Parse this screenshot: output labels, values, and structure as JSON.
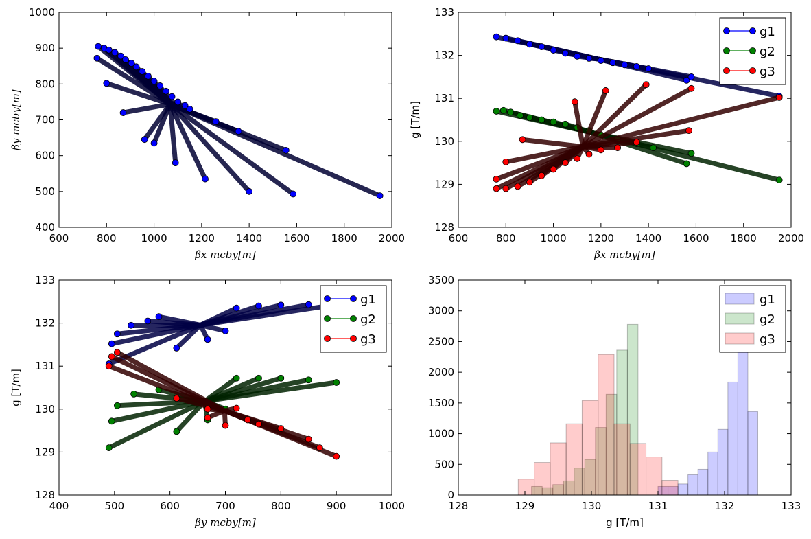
{
  "figure": {
    "panels": 4
  },
  "chart_data": [
    {
      "id": "top-left",
      "type": "scatter",
      "xlabel": "βx mcby[m]",
      "ylabel": "βy mcby[m]",
      "xlim": [
        600,
        2000
      ],
      "ylim": [
        400,
        1000
      ],
      "xticks": [
        "600",
        "800",
        "1000",
        "1200",
        "1400",
        "1600",
        "1800",
        "2000"
      ],
      "yticks": [
        "400",
        "500",
        "600",
        "700",
        "800",
        "900",
        "1000"
      ],
      "grid": false,
      "legend": null,
      "series": [
        {
          "color": "#0000ff",
          "points": [
            [
              765,
              905
            ],
            [
              790,
              900
            ],
            [
              810,
              895
            ],
            [
              835,
              888
            ],
            [
              860,
              878
            ],
            [
              880,
              868
            ],
            [
              905,
              858
            ],
            [
              925,
              848
            ],
            [
              950,
              835
            ],
            [
              975,
              822
            ],
            [
              1000,
              808
            ],
            [
              1025,
              795
            ],
            [
              1050,
              780
            ],
            [
              1075,
              765
            ],
            [
              1100,
              750
            ],
            [
              1130,
              740
            ],
            [
              1150,
              730
            ],
            [
              1260,
              695
            ],
            [
              1355,
              668
            ],
            [
              1555,
              615
            ],
            [
              1585,
              493
            ],
            [
              1400,
              500
            ],
            [
              1215,
              535
            ],
            [
              1090,
              580
            ],
            [
              1950,
              488
            ],
            [
              760,
              872
            ],
            [
              800,
              802
            ],
            [
              870,
              720
            ],
            [
              960,
              645
            ],
            [
              1000,
              635
            ]
          ]
        }
      ]
    },
    {
      "id": "top-right",
      "type": "line",
      "xlabel": "βx mcby[m]",
      "ylabel": "g [T/m]",
      "xlim": [
        600,
        2000
      ],
      "ylim": [
        128,
        133
      ],
      "xticks": [
        "600",
        "800",
        "1000",
        "1200",
        "1400",
        "1600",
        "1800",
        "2000"
      ],
      "yticks": [
        "128",
        "129",
        "130",
        "131",
        "132",
        "133"
      ],
      "grid": false,
      "legend": "top-right",
      "series": [
        {
          "name": "g1",
          "color": "#0000ff",
          "points": [
            [
              760,
              132.43
            ],
            [
              800,
              132.4
            ],
            [
              850,
              132.34
            ],
            [
              900,
              132.26
            ],
            [
              950,
              132.2
            ],
            [
              1000,
              132.12
            ],
            [
              1050,
              132.05
            ],
            [
              1100,
              131.98
            ],
            [
              1150,
              131.93
            ],
            [
              1200,
              131.88
            ],
            [
              1250,
              131.83
            ],
            [
              1300,
              131.78
            ],
            [
              1350,
              131.74
            ],
            [
              1400,
              131.69
            ],
            [
              1560,
              131.42
            ],
            [
              1580,
              131.5
            ],
            [
              1950,
              131.05
            ]
          ]
        },
        {
          "name": "g2",
          "color": "#008000",
          "points": [
            [
              760,
              130.7
            ],
            [
              790,
              130.72
            ],
            [
              820,
              130.68
            ],
            [
              860,
              130.6
            ],
            [
              900,
              130.55
            ],
            [
              950,
              130.5
            ],
            [
              1000,
              130.45
            ],
            [
              1050,
              130.4
            ],
            [
              1100,
              130.32
            ],
            [
              1150,
              130.25
            ],
            [
              1200,
              130.15
            ],
            [
              1270,
              130.05
            ],
            [
              1350,
              129.95
            ],
            [
              1420,
              129.85
            ],
            [
              1560,
              129.48
            ],
            [
              1580,
              129.72
            ],
            [
              1950,
              129.1
            ]
          ]
        },
        {
          "name": "g3",
          "color": "#ff0000",
          "points": [
            [
              760,
              128.9
            ],
            [
              800,
              128.9
            ],
            [
              850,
              128.95
            ],
            [
              900,
              129.05
            ],
            [
              950,
              129.2
            ],
            [
              1000,
              129.35
            ],
            [
              1050,
              129.5
            ],
            [
              1100,
              129.6
            ],
            [
              1150,
              129.7
            ],
            [
              1200,
              129.8
            ],
            [
              1270,
              129.85
            ],
            [
              1350,
              129.98
            ],
            [
              1570,
              130.25
            ],
            [
              1950,
              131.02
            ],
            [
              1580,
              131.23
            ],
            [
              1390,
              131.32
            ],
            [
              1220,
              131.18
            ],
            [
              1090,
              130.92
            ],
            [
              870,
              130.04
            ],
            [
              800,
              129.52
            ],
            [
              760,
              129.12
            ]
          ]
        }
      ]
    },
    {
      "id": "bottom-left",
      "type": "line",
      "xlabel": "βy mcby[m]",
      "ylabel": "g [T/m]",
      "xlim": [
        400,
        1000
      ],
      "ylim": [
        128,
        133
      ],
      "xticks": [
        "400",
        "500",
        "600",
        "700",
        "800",
        "900",
        "1000"
      ],
      "yticks": [
        "128",
        "129",
        "130",
        "131",
        "132",
        "133"
      ],
      "grid": false,
      "legend": "top-right",
      "series": [
        {
          "name": "g1",
          "color": "#0000ff",
          "points": [
            [
              490,
              131.05
            ],
            [
              495,
              131.52
            ],
            [
              505,
              131.75
            ],
            [
              530,
              131.95
            ],
            [
              560,
              132.05
            ],
            [
              580,
              132.15
            ],
            [
              612,
              131.42
            ],
            [
              668,
              131.62
            ],
            [
              700,
              131.82
            ],
            [
              720,
              132.35
            ],
            [
              760,
              132.4
            ],
            [
              800,
              132.42
            ],
            [
              850,
              132.43
            ],
            [
              900,
              132.43
            ]
          ]
        },
        {
          "name": "g2",
          "color": "#008000",
          "points": [
            [
              490,
              129.1
            ],
            [
              495,
              129.72
            ],
            [
              505,
              130.08
            ],
            [
              535,
              130.35
            ],
            [
              580,
              130.45
            ],
            [
              612,
              129.48
            ],
            [
              668,
              129.75
            ],
            [
              700,
              130.0
            ],
            [
              720,
              130.72
            ],
            [
              760,
              130.72
            ],
            [
              800,
              130.72
            ],
            [
              850,
              130.68
            ],
            [
              900,
              130.62
            ]
          ]
        },
        {
          "name": "g3",
          "color": "#ff0000",
          "points": [
            [
              490,
              131.0
            ],
            [
              495,
              131.22
            ],
            [
              505,
              131.32
            ],
            [
              612,
              130.25
            ],
            [
              668,
              130.0
            ],
            [
              668,
              129.8
            ],
            [
              700,
              129.62
            ],
            [
              720,
              130.02
            ],
            [
              740,
              129.75
            ],
            [
              760,
              129.65
            ],
            [
              800,
              129.55
            ],
            [
              850,
              129.3
            ],
            [
              870,
              129.1
            ],
            [
              900,
              128.9
            ]
          ]
        }
      ]
    },
    {
      "id": "bottom-right",
      "type": "bar",
      "subtype": "histogram",
      "xlabel": "g [T/m]",
      "ylabel": "",
      "xlim": [
        128,
        133
      ],
      "ylim": [
        0,
        3500
      ],
      "xticks": [
        "128",
        "129",
        "130",
        "131",
        "132",
        "133"
      ],
      "yticks": [
        "0",
        "500",
        "1000",
        "1500",
        "2000",
        "2500",
        "3000",
        "3500"
      ],
      "grid": false,
      "legend": "top-right",
      "series": [
        {
          "name": "g1",
          "color": "#0000ff",
          "bin_start": 131.0,
          "bin_width": 0.15,
          "counts": [
            140,
            140,
            180,
            330,
            420,
            700,
            1070,
            1840,
            2850,
            1360
          ]
        },
        {
          "name": "g2",
          "color": "#008000",
          "bin_start": 129.1,
          "bin_width": 0.16,
          "counts": [
            140,
            120,
            170,
            230,
            440,
            580,
            1100,
            1640,
            2360,
            2780
          ]
        },
        {
          "name": "g3",
          "color": "#ff0000",
          "bin_start": 128.9,
          "bin_width": 0.24,
          "counts": [
            260,
            530,
            850,
            1160,
            1540,
            2290,
            1160,
            840,
            620,
            240
          ]
        }
      ]
    }
  ]
}
